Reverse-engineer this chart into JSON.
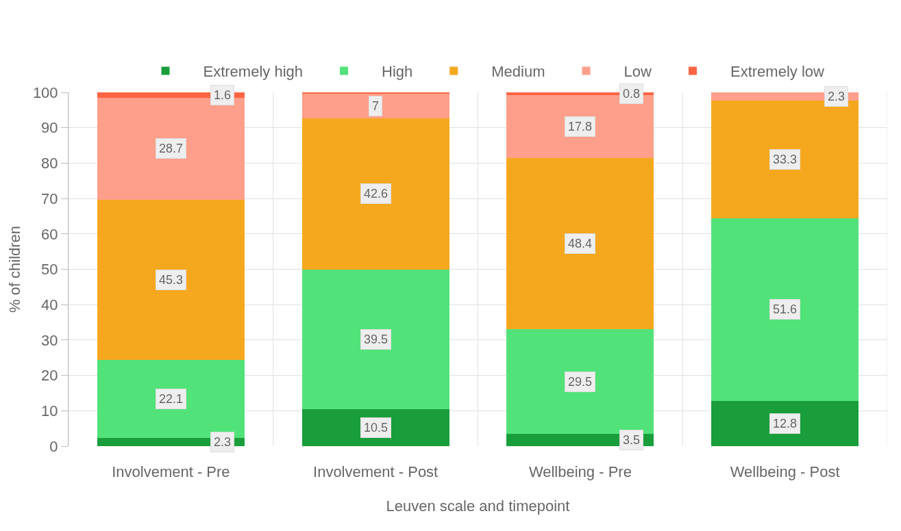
{
  "chart_data": {
    "type": "bar",
    "stacked": true,
    "xlabel": "Leuven scale and timepoint",
    "ylabel": "% of children",
    "categories": [
      "Involvement - Pre",
      "Involvement - Post",
      "Wellbeing - Pre",
      "Wellbeing - Post"
    ],
    "series": [
      {
        "name": "Extremely high",
        "color": "#1a9e3c",
        "values": [
          2.3,
          10.5,
          3.5,
          12.8
        ],
        "value_labels": [
          "2.3",
          "10.5",
          "3.5",
          "12.8"
        ]
      },
      {
        "name": "High",
        "color": "#52e27a",
        "values": [
          22.1,
          39.5,
          29.5,
          51.6
        ],
        "value_labels": [
          "22.1",
          "39.5",
          "29.5",
          "51.6"
        ]
      },
      {
        "name": "Medium",
        "color": "#f5a81e",
        "values": [
          45.3,
          42.6,
          48.4,
          33.3
        ],
        "value_labels": [
          "45.3",
          "42.6",
          "48.4",
          "33.3"
        ]
      },
      {
        "name": "Low",
        "color": "#fd9f8a",
        "values": [
          28.7,
          7,
          17.8,
          2.3
        ],
        "value_labels": [
          "28.7",
          "7",
          "17.8",
          "2.3"
        ]
      },
      {
        "name": "Extremely low",
        "color": "#fd6443",
        "values": [
          1.6,
          0.4,
          0.8,
          0
        ],
        "value_labels": [
          "1.6",
          null,
          "0.8",
          null
        ]
      }
    ],
    "ylim": [
      0,
      100
    ],
    "yticks": [
      0,
      10,
      20,
      30,
      40,
      50,
      60,
      70,
      80,
      90,
      100
    ],
    "grid": true,
    "legend": "top"
  }
}
